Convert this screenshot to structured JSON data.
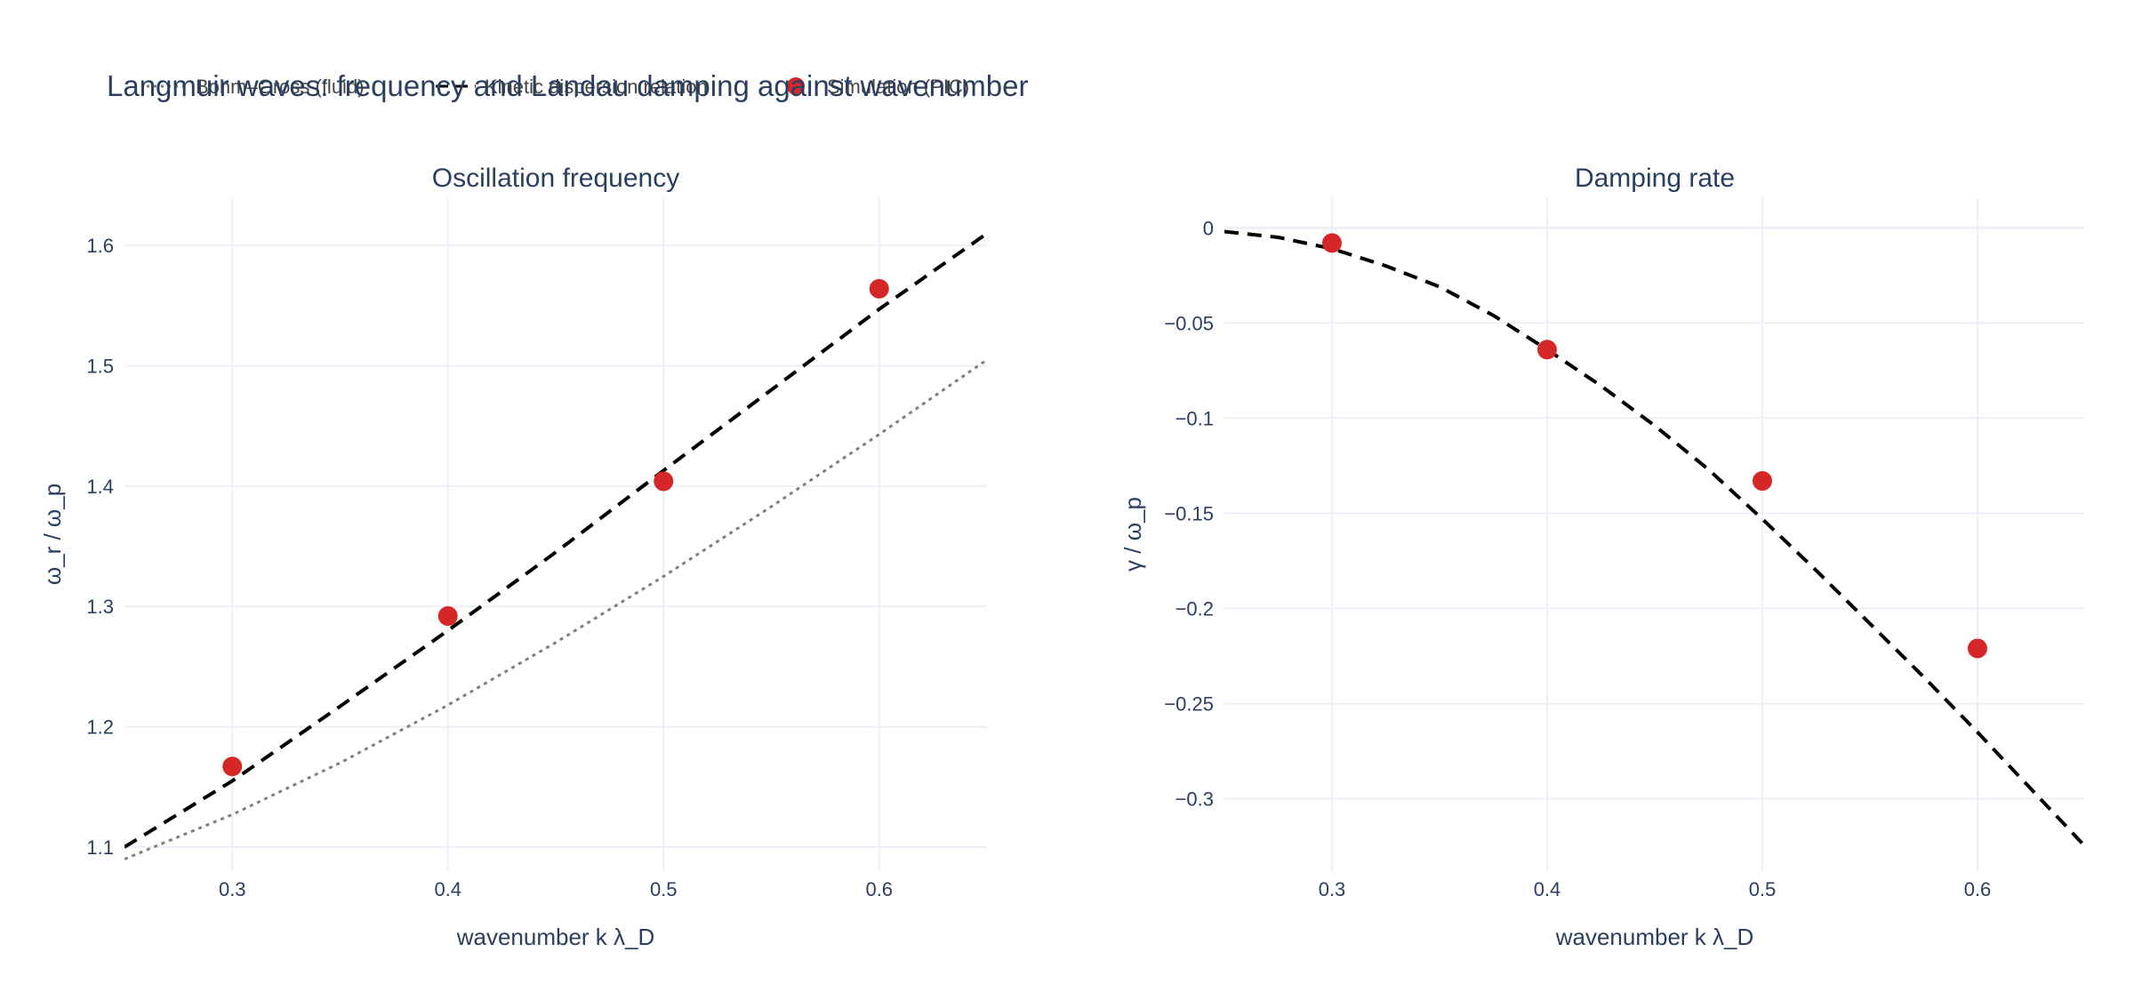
{
  "title": "Langmuir waves: frequency and Landau damping against wavenumber",
  "legend": [
    {
      "key": "bohm_gross",
      "label": "Bohm–Gross (fluid)",
      "style": "dotted",
      "color": "#808080"
    },
    {
      "key": "kinetic",
      "label": "Kinetic dispersion relation",
      "style": "dashed",
      "color": "#000000"
    },
    {
      "key": "sim",
      "label": "Simulation (PIC)",
      "style": "marker",
      "color": "#d62728"
    }
  ],
  "chart_data": [
    {
      "type": "line",
      "title": "Oscillation frequency",
      "xlabel": "wavenumber k λ_D",
      "ylabel": "ω_r / ω_p",
      "xlim": [
        0.25,
        0.65
      ],
      "ylim": [
        1.08,
        1.64
      ],
      "xticks": [
        0.3,
        0.4,
        0.5,
        0.6
      ],
      "yticks": [
        1.1,
        1.2,
        1.3,
        1.4,
        1.5,
        1.6
      ],
      "ytick_labels": [
        "1.1",
        "1.2",
        "1.3",
        "1.4",
        "1.5",
        "1.6"
      ],
      "grid": true,
      "series": [
        {
          "name": "Bohm–Gross (fluid)",
          "kind": "dotted",
          "color": "#808080",
          "x": [
            0.25,
            0.3,
            0.35,
            0.4,
            0.45,
            0.5,
            0.55,
            0.6,
            0.65
          ],
          "y": [
            1.09,
            1.127,
            1.17,
            1.218,
            1.27,
            1.325,
            1.383,
            1.443,
            1.505
          ]
        },
        {
          "name": "Kinetic dispersion relation",
          "kind": "dashed",
          "color": "#000000",
          "x": [
            0.25,
            0.3,
            0.35,
            0.4,
            0.45,
            0.5,
            0.55,
            0.6,
            0.65
          ],
          "y": [
            1.1,
            1.155,
            1.217,
            1.28,
            1.345,
            1.413,
            1.48,
            1.547,
            1.61
          ]
        },
        {
          "name": "Simulation (PIC)",
          "kind": "marker",
          "color": "#d62728",
          "x": [
            0.3,
            0.4,
            0.5,
            0.6
          ],
          "y": [
            1.167,
            1.292,
            1.404,
            1.564
          ]
        }
      ]
    },
    {
      "type": "line",
      "title": "Damping rate",
      "xlabel": "wavenumber k λ_D",
      "ylabel": "γ / ω_p",
      "xlim": [
        0.25,
        0.65
      ],
      "ylim": [
        -0.338,
        0.016
      ],
      "xticks": [
        0.3,
        0.4,
        0.5,
        0.6
      ],
      "yticks": [
        0,
        -0.05,
        -0.1,
        -0.15,
        -0.2,
        -0.25,
        -0.3
      ],
      "ytick_labels": [
        "0",
        "−0.05",
        "−0.1",
        "−0.15",
        "−0.2",
        "−0.25",
        "−0.3"
      ],
      "grid": true,
      "series": [
        {
          "name": "Kinetic dispersion relation",
          "kind": "dashed",
          "color": "#000000",
          "x": [
            0.25,
            0.275,
            0.3,
            0.325,
            0.35,
            0.375,
            0.4,
            0.425,
            0.45,
            0.475,
            0.5,
            0.525,
            0.55,
            0.575,
            0.6,
            0.625,
            0.65
          ],
          "y": [
            -0.002,
            -0.005,
            -0.011,
            -0.02,
            -0.031,
            -0.046,
            -0.064,
            -0.083,
            -0.104,
            -0.127,
            -0.153,
            -0.18,
            -0.208,
            -0.236,
            -0.265,
            -0.295,
            -0.325
          ]
        },
        {
          "name": "Simulation (PIC)",
          "kind": "marker",
          "color": "#d62728",
          "x": [
            0.3,
            0.4,
            0.5,
            0.6
          ],
          "y": [
            -0.008,
            -0.064,
            -0.133,
            -0.221
          ]
        }
      ]
    }
  ]
}
